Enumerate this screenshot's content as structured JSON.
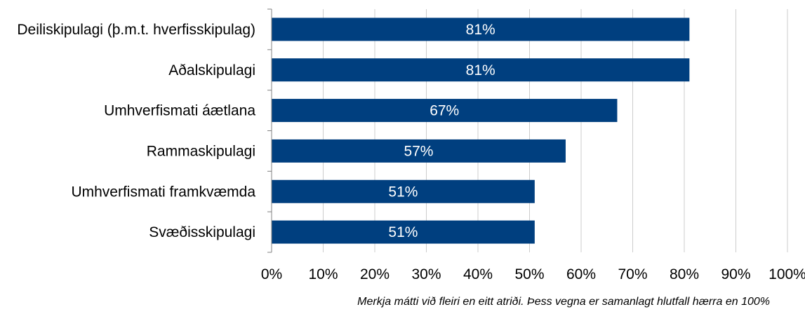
{
  "chart_data": {
    "type": "bar",
    "orientation": "horizontal",
    "categories": [
      "Deiliskipulagi (þ.m.t. hverfisskipulag)",
      "Aðalskipulagi",
      "Umhverfismati áætlana",
      "Rammaskipulagi",
      "Umhverfismati framkvæmda",
      "Svæðisskipulagi"
    ],
    "values": [
      81,
      81,
      67,
      57,
      51,
      51
    ],
    "data_labels": [
      "81%",
      "81%",
      "67%",
      "57%",
      "51%",
      "51%"
    ],
    "x_ticks": [
      "0%",
      "10%",
      "20%",
      "30%",
      "40%",
      "50%",
      "60%",
      "70%",
      "80%",
      "90%",
      "100%"
    ],
    "xlim": [
      0,
      100
    ],
    "grid": "vertical",
    "bar_color": "#003F7F",
    "grid_color": "#CCCCCC"
  },
  "note": "Merkja mátti við fleiri en eitt atriði. Þess vegna er samanlagt hlutfall hærra en 100%"
}
